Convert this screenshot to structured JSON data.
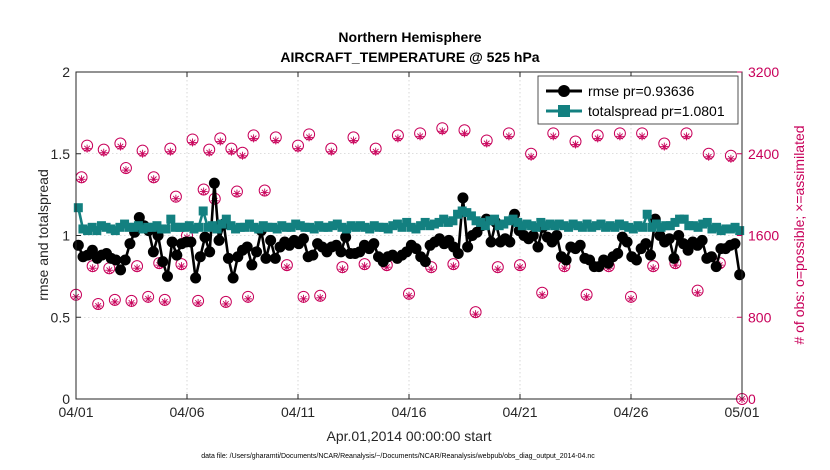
{
  "chart_data": {
    "type": "line",
    "title": "Northern Hemisphere",
    "subtitle": "AIRCRAFT_TEMPERATURE @ 525 hPa",
    "xlabel": "Apr.01,2014 00:00:00 start",
    "ylabel": "rmse and totalspread",
    "y2label": "# of obs: o=possible; ×=assimilated",
    "footnote": "data file: /Users/gharamti/Documents/NCAR/Reanalysis/~/Documents/NCAR/Reanalysis/webpub/obs_diag_output_2014-04.nc",
    "xlim": [
      0,
      30
    ],
    "ylim": [
      0,
      2
    ],
    "y2lim": [
      0,
      3200
    ],
    "x_ticks": [
      0,
      5,
      10,
      15,
      20,
      25,
      30
    ],
    "x_tick_labels": [
      "04/01",
      "04/06",
      "04/11",
      "04/16",
      "04/21",
      "04/26",
      "05/01"
    ],
    "y_ticks": [
      0,
      0.5,
      1,
      1.5,
      2
    ],
    "y_tick_labels": [
      "0",
      "0.5",
      "1",
      "1.5",
      "2"
    ],
    "y2_ticks": [
      0,
      800,
      1600,
      2400,
      3200
    ],
    "y2_tick_labels": [
      "0",
      "800",
      "1600",
      "2400",
      "3200"
    ],
    "grid": true,
    "legend_position": "top-right",
    "colors": {
      "rmse": "#000000",
      "totalspread": "#138080",
      "obs": "#c8005a"
    },
    "series": [
      {
        "name": "rmse pr=0.93636",
        "marker": "circle",
        "axis": "left",
        "values": [
          0.94,
          0.87,
          0.88,
          0.91,
          0.86,
          0.88,
          0.89,
          0.86,
          0.85,
          0.79,
          0.85,
          0.95,
          1.02,
          1.11,
          1.06,
          1.03,
          0.9,
          1.0,
          0.84,
          0.75,
          0.96,
          0.88,
          0.95,
          0.96,
          0.96,
          0.74,
          0.87,
          0.99,
          0.9,
          1.32,
          0.97,
          1.07,
          0.86,
          0.74,
          0.87,
          0.91,
          0.93,
          0.82,
          0.9,
          1.03,
          0.86,
          0.97,
          0.86,
          0.93,
          0.96,
          0.94,
          0.97,
          0.95,
          0.98,
          0.87,
          0.88,
          0.95,
          0.93,
          0.9,
          0.93,
          0.94,
          0.9,
          0.99,
          0.89,
          0.89,
          0.9,
          0.94,
          0.92,
          0.95,
          0.87,
          0.84,
          0.87,
          0.88,
          0.86,
          0.88,
          0.9,
          0.94,
          0.92,
          0.87,
          0.84,
          0.94,
          0.96,
          0.98,
          0.95,
          0.97,
          0.93,
          0.89,
          1.23,
          0.93,
          1.0,
          1.02,
          1.06,
          1.1,
          0.96,
          1.08,
          0.96,
          0.98,
          0.96,
          1.13,
          1.03,
          1.0,
          0.98,
          1.0,
          0.93,
          1.05,
          0.99,
          0.96,
          1.0,
          0.87,
          0.85,
          0.93,
          0.92,
          0.94,
          0.86,
          0.85,
          0.81,
          0.81,
          0.85,
          0.83,
          0.87,
          0.89,
          0.99,
          0.96,
          0.87,
          0.85,
          0.92,
          0.95,
          0.88,
          1.1,
          1.0,
          0.96,
          0.98,
          0.86,
          1.0,
          0.95,
          0.91,
          0.96,
          0.94,
          0.97,
          0.86,
          0.87,
          0.81,
          0.92,
          0.92,
          0.94,
          0.95,
          0.76
        ],
        "extra": {}
      },
      {
        "name": "totalspread pr=1.0801",
        "marker": "square",
        "axis": "left",
        "values": [
          1.17,
          1.04,
          1.03,
          1.05,
          1.03,
          1.06,
          1.05,
          1.04,
          1.03,
          1.05,
          1.07,
          1.05,
          1.05,
          1.06,
          1.04,
          1.05,
          1.05,
          1.06,
          1.04,
          1.04,
          1.1,
          1.05,
          1.05,
          1.05,
          1.06,
          1.04,
          1.05,
          1.15,
          1.05,
          1.06,
          1.04,
          1.07,
          1.1,
          1.06,
          1.04,
          1.05,
          1.05,
          1.07,
          1.05,
          1.04,
          1.06,
          1.05,
          1.05,
          1.04,
          1.06,
          1.05,
          1.05,
          1.07,
          1.06,
          1.05,
          1.05,
          1.04,
          1.06,
          1.05,
          1.05,
          1.06,
          1.07,
          1.05,
          1.04,
          1.06,
          1.05,
          1.06,
          1.05,
          1.04,
          1.06,
          1.05,
          1.05,
          1.04,
          1.06,
          1.07,
          1.05,
          1.08,
          1.05,
          1.04,
          1.06,
          1.08,
          1.06,
          1.07,
          1.08,
          1.1,
          1.08,
          1.09,
          1.13,
          1.15,
          1.14,
          1.12,
          1.09,
          1.08,
          1.06,
          1.09,
          1.1,
          1.06,
          1.07,
          1.09,
          1.1,
          1.08,
          1.06,
          1.07,
          1.06,
          1.05,
          1.08,
          1.06,
          1.07,
          1.06,
          1.07,
          1.06,
          1.05,
          1.07,
          1.06,
          1.05,
          1.07,
          1.05,
          1.06,
          1.07,
          1.05,
          1.06,
          1.05,
          1.07,
          1.06,
          1.05,
          1.04,
          1.06,
          1.05,
          1.13,
          1.05,
          1.07,
          1.05,
          1.06,
          1.06,
          1.08,
          1.1,
          1.1,
          1.06,
          1.06,
          1.05,
          1.07,
          1.08,
          1.04,
          1.05,
          1.03,
          1.04,
          1.04,
          1.05,
          1.03
        ],
        "extra": {}
      }
    ],
    "obs_possible": {
      "name": "possible",
      "marker": "circle",
      "axis": "right",
      "x": [
        0,
        0.25,
        0.5,
        0.75,
        1.0,
        1.25,
        1.5,
        1.75,
        2.0,
        2.25,
        2.5,
        2.75,
        3.0,
        3.25,
        3.5,
        3.75,
        4.0,
        4.25,
        4.5,
        4.75,
        5.0,
        5.25,
        5.5,
        5.75,
        6.0,
        6.25,
        6.5,
        6.75,
        7.0,
        7.25,
        7.5,
        7.75,
        8.0,
        8.5,
        9.0,
        9.5,
        10.0,
        10.25,
        10.5,
        11.0,
        11.5,
        12.0,
        12.5,
        13.0,
        13.5,
        14.0,
        14.5,
        15.0,
        15.5,
        16.0,
        16.5,
        17.0,
        17.5,
        18.0,
        18.5,
        19.0,
        19.5,
        20.0,
        20.5,
        21.0,
        21.5,
        22.0,
        22.5,
        23.0,
        23.5,
        24.0,
        24.5,
        25.0,
        25.5,
        26.0,
        26.5,
        27.0,
        27.5,
        28.0,
        28.5,
        29.0,
        29.5,
        30.0
      ],
      "values": [
        1020,
        2170,
        2480,
        1300,
        930,
        2440,
        1280,
        970,
        2500,
        2260,
        960,
        1300,
        2430,
        1000,
        2170,
        1330,
        970,
        2450,
        1980,
        1320,
        1600,
        2540,
        960,
        2050,
        2440,
        1960,
        2550,
        950,
        2450,
        2030,
        2410,
        1000,
        2580,
        2040,
        2560,
        1310,
        2480,
        1000,
        2590,
        1010,
        2450,
        1290,
        2560,
        1320,
        2450,
        1310,
        2580,
        1030,
        2600,
        1290,
        2650,
        1320,
        2630,
        850,
        2530,
        1290,
        2600,
        1310,
        2400,
        1040,
        2600,
        1300,
        2520,
        1020,
        2580,
        1300,
        2600,
        1000,
        2600,
        1300,
        2500,
        1330,
        2600,
        1060,
        2400,
        1330,
        2380,
        0
      ],
      "extra": {}
    },
    "obs_assimilated": {
      "name": "assimilated",
      "marker": "asterisk",
      "axis": "right",
      "x": [
        0,
        0.25,
        0.5,
        0.75,
        1.0,
        1.25,
        1.5,
        1.75,
        2.0,
        2.25,
        2.5,
        2.75,
        3.0,
        3.25,
        3.5,
        3.75,
        4.0,
        4.25,
        4.5,
        4.75,
        5.0,
        5.25,
        5.5,
        5.75,
        6.0,
        6.25,
        6.5,
        6.75,
        7.0,
        7.25,
        7.5,
        7.75,
        8.0,
        8.5,
        9.0,
        9.5,
        10.0,
        10.25,
        10.5,
        11.0,
        11.5,
        12.0,
        12.5,
        13.0,
        13.5,
        14.0,
        14.5,
        15.0,
        15.5,
        16.0,
        16.5,
        17.0,
        17.5,
        18.0,
        18.5,
        19.0,
        19.5,
        20.0,
        20.5,
        21.0,
        21.5,
        22.0,
        22.5,
        23.0,
        23.5,
        24.0,
        24.5,
        25.0,
        25.5,
        26.0,
        26.5,
        27.0,
        27.5,
        28.0,
        28.5,
        29.0,
        29.5,
        30.0
      ],
      "values": [
        1000,
        2150,
        2450,
        1280,
        910,
        2410,
        1260,
        950,
        2470,
        2240,
        940,
        1280,
        2400,
        980,
        2150,
        1310,
        950,
        2420,
        1960,
        1300,
        1580,
        2510,
        940,
        2030,
        2410,
        1940,
        2520,
        930,
        2420,
        2010,
        2380,
        980,
        2550,
        2020,
        2530,
        1290,
        2450,
        980,
        2560,
        990,
        2420,
        1270,
        2530,
        1300,
        2420,
        1290,
        2550,
        1010,
        2570,
        1270,
        2620,
        1300,
        2600,
        830,
        2500,
        1270,
        2570,
        1290,
        2370,
        1020,
        2570,
        1280,
        2490,
        1000,
        2550,
        1280,
        2570,
        980,
        2570,
        1280,
        2470,
        1310,
        2570,
        1040,
        2370,
        1310,
        2350,
        0
      ],
      "extra": {}
    }
  }
}
